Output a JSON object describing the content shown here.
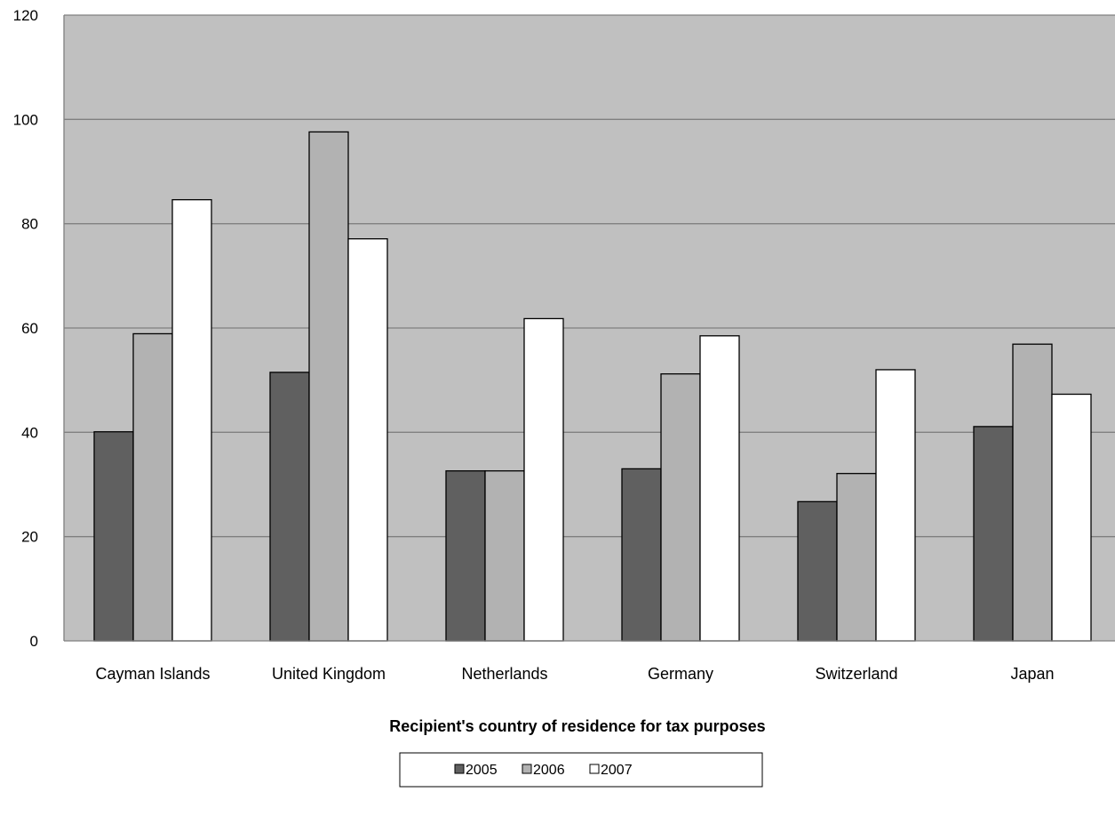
{
  "chart_data": {
    "type": "bar",
    "title": "",
    "xlabel": "Recipient's country of residence for tax purposes",
    "ylabel": "",
    "ylim": [
      0,
      120
    ],
    "yticks": [
      0,
      20,
      40,
      60,
      80,
      100,
      120
    ],
    "grid": true,
    "legend_position": "bottom",
    "categories": [
      "Cayman Islands",
      "United Kingdom",
      "Netherlands",
      "Germany",
      "Switzerland",
      "Japan"
    ],
    "series": [
      {
        "name": "2005",
        "color": "#606060",
        "values": [
          40.1,
          51.5,
          32.6,
          33.0,
          26.7,
          41.1
        ]
      },
      {
        "name": "2006",
        "color": "#b2b2b2",
        "values": [
          58.9,
          97.6,
          32.6,
          51.2,
          32.1,
          56.9
        ]
      },
      {
        "name": "2007",
        "color": "#ffffff",
        "values": [
          84.6,
          77.1,
          61.8,
          58.5,
          52.0,
          47.3
        ]
      }
    ],
    "plot_background": "#c0c0c0",
    "gridline_color": "#808080"
  }
}
